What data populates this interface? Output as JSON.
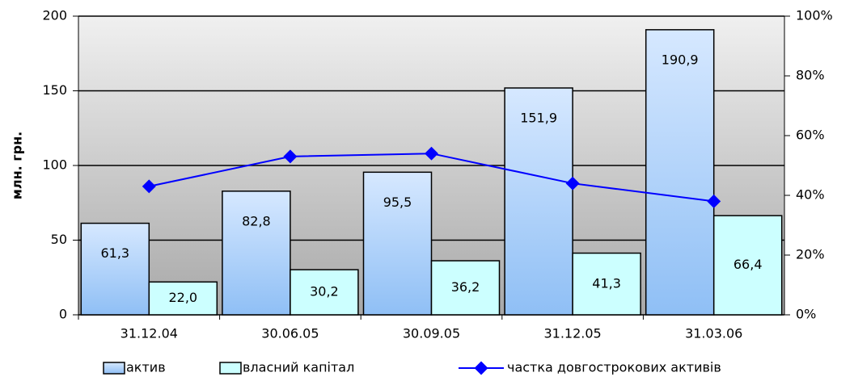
{
  "chart_data": {
    "type": "bar",
    "y_label": "млн. грн.",
    "categories": [
      "31.12.04",
      "30.06.05",
      "30.09.05",
      "31.12.05",
      "31.03.06"
    ],
    "series": [
      {
        "name": "актив",
        "color": "#8fbff5",
        "values": [
          61.3,
          82.8,
          95.5,
          151.9,
          190.9
        ],
        "value_labels": [
          "61,3",
          "82,8",
          "95,5",
          "151,9",
          "190,9"
        ]
      },
      {
        "name": "власний капітал",
        "color": "#ccffff",
        "values": [
          22.0,
          30.2,
          36.2,
          41.3,
          66.4
        ],
        "value_labels": [
          "22,0",
          "30,2",
          "36,2",
          "41,3",
          "66,4"
        ]
      },
      {
        "name": "частка довгострокових активів",
        "type": "line",
        "axis": "y2",
        "color": "#0000ff",
        "values": [
          43,
          53,
          54,
          44,
          38
        ]
      }
    ],
    "ylim": [
      0,
      200
    ],
    "yticks": [
      0,
      50,
      100,
      150,
      200
    ],
    "y2lim": [
      0,
      100
    ],
    "y2ticks": [
      {
        "value": 0,
        "label": "0%"
      },
      {
        "value": 20,
        "label": "20%"
      },
      {
        "value": 40,
        "label": "40%"
      },
      {
        "value": 60,
        "label": "60%"
      },
      {
        "value": 80,
        "label": "80%"
      },
      {
        "value": 100,
        "label": "100%"
      }
    ],
    "grid": true
  }
}
